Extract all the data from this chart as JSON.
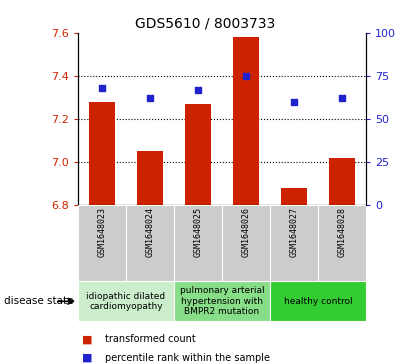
{
  "title": "GDS5610 / 8003733",
  "samples": [
    "GSM1648023",
    "GSM1648024",
    "GSM1648025",
    "GSM1648026",
    "GSM1648027",
    "GSM1648028"
  ],
  "bar_values": [
    7.28,
    7.05,
    7.27,
    7.58,
    6.88,
    7.02
  ],
  "dot_values": [
    68,
    62,
    67,
    75,
    60,
    62
  ],
  "ylim_left": [
    6.8,
    7.6
  ],
  "ylim_right": [
    0,
    100
  ],
  "yticks_left": [
    6.8,
    7.0,
    7.2,
    7.4,
    7.6
  ],
  "yticks_right": [
    0,
    25,
    50,
    75,
    100
  ],
  "bar_color": "#cc2200",
  "dot_color": "#2222cc",
  "bar_width": 0.55,
  "disease_groups": [
    {
      "label": "idiopathic dilated\ncardiomyopathy",
      "indices": [
        0,
        1
      ],
      "color": "#cceecc"
    },
    {
      "label": "pulmonary arterial\nhypertension with\nBMPR2 mutation",
      "indices": [
        2,
        3
      ],
      "color": "#88dd88"
    },
    {
      "label": "healthy control",
      "indices": [
        4,
        5
      ],
      "color": "#33cc33"
    }
  ],
  "legend_bar_label": "transformed count",
  "legend_dot_label": "percentile rank within the sample",
  "disease_state_label": "disease state",
  "background_color": "#ffffff",
  "plot_bg_color": "#ffffff",
  "tick_label_color_left": "#cc2200",
  "tick_label_color_right": "#2222cc",
  "sample_box_color": "#cccccc",
  "title_fontsize": 10,
  "legend_fontsize": 7,
  "sample_fontsize": 6,
  "disease_fontsize": 6.5
}
